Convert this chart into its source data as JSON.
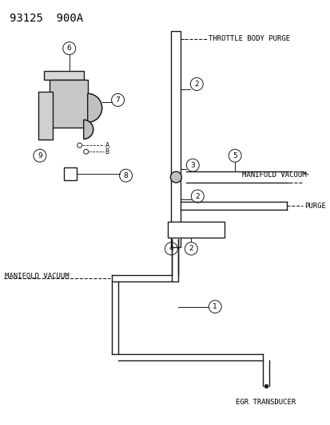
{
  "title": "93125  900A",
  "bg_color": "#ffffff",
  "line_color": "#1a1a1a",
  "label_color": "#000000",
  "title_fontsize": 10,
  "label_fontsize": 6.5,
  "labels": {
    "throttle_body_purge": "THROTTLE BODY PURGE",
    "manifold_vacuum_top": "MANIFOLD VACUUM",
    "purge": "PURGE",
    "manifold_vacuum_bot": "MANIFOLD VACUUM",
    "egr_transducer": "EGR TRANSDUCER"
  }
}
